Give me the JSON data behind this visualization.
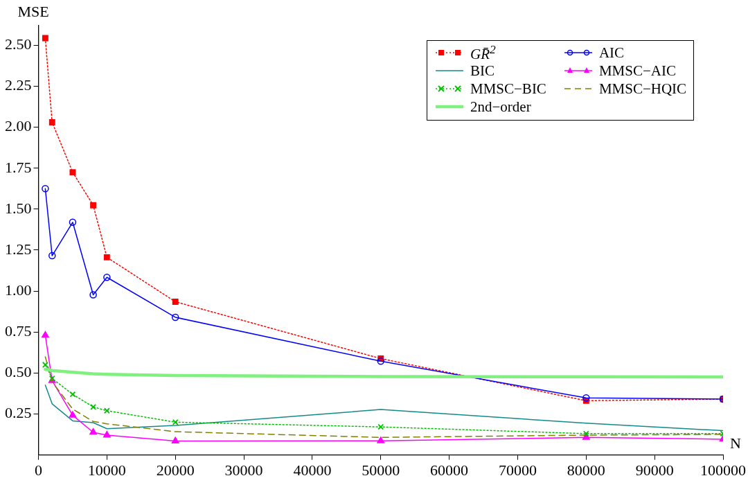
{
  "chart_data": {
    "type": "line",
    "xlabel": "N",
    "ylabel": "MSE",
    "x": [
      1000,
      2000,
      5000,
      8000,
      10000,
      20000,
      50000,
      80000,
      100000
    ],
    "xlim": [
      0,
      100000
    ],
    "xticks": [
      0,
      10000,
      20000,
      30000,
      40000,
      50000,
      60000,
      70000,
      80000,
      90000,
      100000
    ],
    "ylim": [
      0,
      2.62
    ],
    "yticks": [
      {
        "value": 0.25,
        "label": "0.25"
      },
      {
        "value": 0.5,
        "label": "0.50"
      },
      {
        "value": 0.75,
        "label": "0.75"
      },
      {
        "value": 1,
        "label": "1.00"
      },
      {
        "value": 1.25,
        "label": "1.25"
      },
      {
        "value": 1.5,
        "label": "1.50"
      },
      {
        "value": 1.75,
        "label": "1.75"
      },
      {
        "value": 2,
        "label": "2.00"
      },
      {
        "value": 2.25,
        "label": "2.25"
      },
      {
        "value": 2.5,
        "label": "2.50"
      }
    ],
    "grid": false,
    "legend": "top right",
    "series": [
      {
        "name": "GR̄$^{2}$",
        "color": "#ff0000",
        "marker": "square",
        "line_style": "dotted",
        "values": [
          2.544,
          2.03,
          1.725,
          1.524,
          1.206,
          0.935,
          0.588,
          0.331,
          0.341
        ]
      },
      {
        "name": "AIC",
        "color": "#0000ff",
        "marker": "circle",
        "line_style": "solid",
        "values": [
          1.625,
          1.216,
          1.42,
          0.977,
          1.084,
          0.84,
          0.572,
          0.348,
          0.341
        ]
      },
      {
        "name": "BIC",
        "color": "#138a8a",
        "marker": "none",
        "line_style": "solid",
        "values": [
          0.426,
          0.312,
          0.208,
          0.197,
          0.16,
          0.18,
          0.277,
          0.194,
          0.148
        ]
      },
      {
        "name": "MMSC−AIC",
        "color": "#ff00ff",
        "marker": "triangle",
        "line_style": "solid",
        "values": [
          0.73,
          0.453,
          0.242,
          0.138,
          0.121,
          0.085,
          0.086,
          0.107,
          0.096
        ]
      },
      {
        "name": "MMSC−BIC",
        "color": "#00c000",
        "marker": "cross",
        "line_style": "dotted",
        "values": [
          0.55,
          0.467,
          0.37,
          0.293,
          0.27,
          0.2,
          0.171,
          0.13,
          0.13
        ]
      },
      {
        "name": "MMSC−HQIC",
        "color": "#808000",
        "marker": "none",
        "line_style": "dashed",
        "values": [
          0.599,
          0.446,
          0.28,
          0.204,
          0.19,
          0.142,
          0.107,
          0.121,
          0.125
        ]
      },
      {
        "name": "2nd−order",
        "color": "#80f080",
        "marker": "none",
        "line_style": "solid",
        "values": [
          0.523,
          0.515,
          0.505,
          0.495,
          0.492,
          0.485,
          0.478,
          0.477,
          0.476
        ]
      }
    ]
  }
}
